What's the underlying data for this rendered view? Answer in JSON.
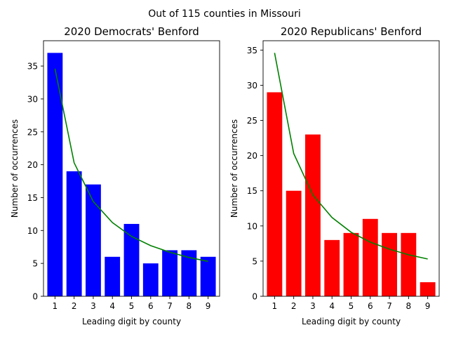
{
  "figure": {
    "suptitle": "Out of 115 counties in Missouri"
  },
  "chart_data": [
    {
      "type": "bar",
      "title": "2020 Democrats' Benford",
      "xlabel": "Leading digit by county",
      "ylabel": "Number of occurrences",
      "categories": [
        1,
        2,
        3,
        4,
        5,
        6,
        7,
        8,
        9
      ],
      "bar_color": "#0000ff",
      "line_color": "#008000",
      "ylim": [
        0,
        38.85
      ],
      "yticks": [
        0,
        5,
        10,
        15,
        20,
        25,
        30,
        35
      ],
      "values": [
        37,
        19,
        17,
        6,
        11,
        5,
        7,
        7,
        6
      ],
      "expected": [
        34.6,
        20.3,
        14.4,
        11.2,
        9.1,
        7.7,
        6.7,
        5.9,
        5.3
      ],
      "grid": false,
      "legend": "none"
    },
    {
      "type": "bar",
      "title": "2020 Republicans' Benford",
      "xlabel": "Leading digit by county",
      "ylabel": "Number of occurrences",
      "categories": [
        1,
        2,
        3,
        4,
        5,
        6,
        7,
        8,
        9
      ],
      "bar_color": "#ff0000",
      "line_color": "#008000",
      "ylim": [
        0,
        36.33
      ],
      "yticks": [
        0,
        5,
        10,
        15,
        20,
        25,
        30,
        35
      ],
      "values": [
        29,
        15,
        23,
        8,
        9,
        11,
        9,
        9,
        2
      ],
      "expected": [
        34.6,
        20.3,
        14.4,
        11.2,
        9.1,
        7.7,
        6.7,
        5.9,
        5.3
      ],
      "grid": false,
      "legend": "none"
    }
  ]
}
